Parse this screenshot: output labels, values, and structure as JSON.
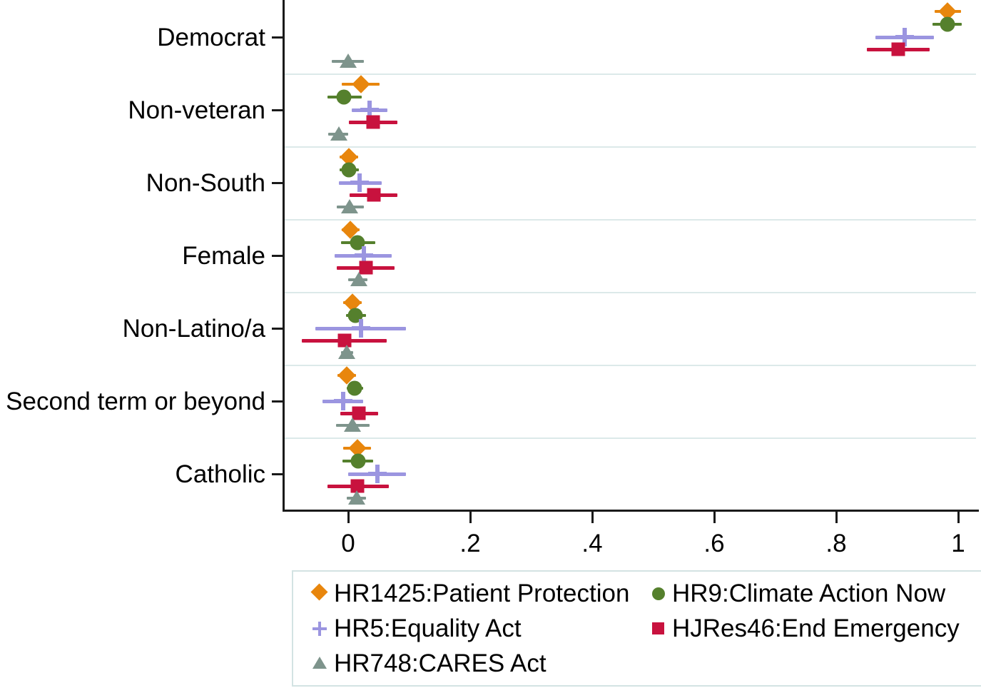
{
  "chart_data": {
    "type": "scatter",
    "subtype": "coefficient-dot-whisker",
    "title": "",
    "xlabel": "",
    "ylabel": "",
    "xlim": [
      -0.105,
      1.035
    ],
    "grid": "horizontal-category-separators",
    "legend_position": "bottom",
    "x_ticks": [
      {
        "label": "0",
        "value": 0.0
      },
      {
        "label": ".2",
        "value": 0.2
      },
      {
        "label": ".4",
        "value": 0.4
      },
      {
        "label": ".6",
        "value": 0.6
      },
      {
        "label": ".8",
        "value": 0.8
      },
      {
        "label": "1",
        "value": 1.0
      }
    ],
    "categories": [
      "Democrat",
      "Non-veteran",
      "Non-South",
      "Female",
      "Non-Latino/a",
      "Second term or beyond",
      "Catholic"
    ],
    "series": [
      {
        "name": "HR1425:Patient Protection",
        "marker": "diamond",
        "color": "#E8860D",
        "line_width": 4,
        "estimates": [
          0.983,
          0.021,
          0.001,
          0.004,
          0.007,
          -0.002,
          0.015
        ],
        "ci_low": [
          0.961,
          -0.011,
          -0.014,
          -0.011,
          -0.008,
          -0.017,
          -0.008
        ],
        "ci_high": [
          1.005,
          0.051,
          0.016,
          0.019,
          0.022,
          0.013,
          0.037
        ]
      },
      {
        "name": "HR9:Climate Action Now",
        "marker": "circle",
        "color": "#55802D",
        "line_width": 4,
        "estimates": [
          0.982,
          -0.007,
          0.001,
          0.015,
          0.012,
          0.011,
          0.016
        ],
        "ci_low": [
          0.958,
          -0.034,
          -0.014,
          -0.012,
          -0.004,
          -0.002,
          -0.009
        ],
        "ci_high": [
          1.006,
          0.022,
          0.018,
          0.044,
          0.029,
          0.024,
          0.041
        ]
      },
      {
        "name": "HR5:Equality Act",
        "marker": "plus",
        "color": "#9B95E0",
        "line_width": 5,
        "estimates": [
          0.912,
          0.035,
          0.019,
          0.026,
          0.021,
          -0.008,
          0.048
        ],
        "ci_low": [
          0.864,
          0.006,
          -0.015,
          -0.022,
          -0.054,
          -0.042,
          0.0
        ],
        "ci_high": [
          0.96,
          0.064,
          0.055,
          0.071,
          0.095,
          0.025,
          0.095
        ]
      },
      {
        "name": "HJRes46:End Emergency",
        "marker": "square",
        "color": "#C8123E",
        "line_width": 5,
        "estimates": [
          0.902,
          0.041,
          0.042,
          0.029,
          -0.006,
          0.018,
          0.015
        ],
        "ci_low": [
          0.85,
          0.001,
          0.002,
          -0.019,
          -0.076,
          -0.013,
          -0.034
        ],
        "ci_high": [
          0.953,
          0.081,
          0.081,
          0.076,
          0.063,
          0.049,
          0.067
        ]
      },
      {
        "name": "HR748:CARES Act",
        "marker": "triangle",
        "color": "#7E948C",
        "line_width": 4,
        "estimates": [
          0.0,
          -0.015,
          0.002,
          0.018,
          -0.002,
          0.007,
          0.014
        ],
        "ci_low": [
          -0.027,
          -0.033,
          -0.019,
          0.0,
          -0.012,
          -0.02,
          -0.002
        ],
        "ci_high": [
          0.026,
          0.0,
          0.026,
          0.032,
          0.008,
          0.035,
          0.029
        ]
      }
    ],
    "legend_layout_rows": [
      [
        0,
        1
      ],
      [
        2,
        3
      ],
      [
        4
      ]
    ]
  },
  "colors": {
    "axis": "#1a1a1a",
    "grid": "#dce9e9",
    "legend_border": "#d3e3e3",
    "background": "#ffffff"
  }
}
